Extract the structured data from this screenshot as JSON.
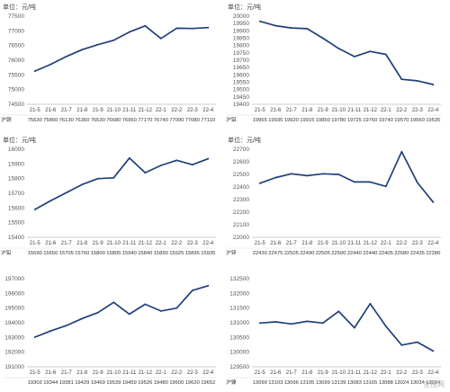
{
  "line_color": "#1f3f7a",
  "chart_data": [
    {
      "type": "line",
      "unit_label": "单位：元/吨",
      "row_label": "沪铜",
      "categories": [
        "21-5",
        "21-6",
        "21-7",
        "21-8",
        "21-9",
        "21-10",
        "21-11",
        "21-12",
        "22-1",
        "22-2",
        "22-3",
        "22-4"
      ],
      "values": [
        75630,
        75860,
        76130,
        76360,
        76530,
        76680,
        76960,
        77170,
        76740,
        77090,
        77080,
        77110
      ],
      "yticks": [
        74500,
        75000,
        75500,
        76000,
        76500,
        77000,
        77500
      ],
      "ylim": [
        74500,
        77500
      ]
    },
    {
      "type": "line",
      "unit_label": "单位：元/吨",
      "row_label": "沪铝",
      "categories": [
        "21-5",
        "21-6",
        "21-7",
        "21-8",
        "21-9",
        "21-10",
        "21-11",
        "21-12",
        "22-1",
        "22-2",
        "22-3",
        "22-4"
      ],
      "values": [
        19965,
        19935,
        19920,
        19915,
        19850,
        19780,
        19725,
        19760,
        19740,
        19570,
        19560,
        19535
      ],
      "yticks": [
        19400,
        19450,
        19500,
        19550,
        19600,
        19650,
        19700,
        19750,
        19800,
        19850,
        19900,
        19950,
        20000
      ],
      "ylim": [
        19400,
        20000
      ]
    },
    {
      "type": "line",
      "unit_label": "单位：元/吨",
      "row_label": "沪铅",
      "categories": [
        "21-5",
        "21-6",
        "21-7",
        "21-8",
        "21-9",
        "21-10",
        "21-11",
        "21-12",
        "22-1",
        "22-2",
        "22-3",
        "22-4"
      ],
      "values": [
        15590,
        15650,
        15705,
        15760,
        15800,
        15805,
        15940,
        15840,
        15890,
        15925,
        15895,
        15935
      ],
      "yticks": [
        15400,
        15500,
        15600,
        15700,
        15800,
        15900,
        16000
      ],
      "ylim": [
        15400,
        16000
      ]
    },
    {
      "type": "line",
      "unit_label": "单位：元/吨",
      "row_label": "沪锌",
      "categories": [
        "21-5",
        "21-6",
        "21-7",
        "21-8",
        "21-9",
        "21-10",
        "21-11",
        "21-12",
        "22-1",
        "22-2",
        "22-3",
        "22-4"
      ],
      "values": [
        22430,
        22475,
        22505,
        22490,
        22505,
        22500,
        22440,
        22440,
        22405,
        22680,
        22435,
        22280
      ],
      "yticks": [
        22000,
        22100,
        22200,
        22300,
        22400,
        22500,
        22600,
        22700
      ],
      "ylim": [
        22000,
        22700
      ]
    },
    {
      "type": "line",
      "unit_label": "",
      "row_label": "",
      "categories": [
        "21-5",
        "21-6",
        "21-7",
        "21-8",
        "21-9",
        "21-10",
        "21-11",
        "21-12",
        "22-1",
        "22-2",
        "22-3",
        "22-4"
      ],
      "values": [
        19302,
        19344,
        19381,
        19429,
        19469,
        19539,
        19459,
        19526,
        19480,
        19500,
        19620,
        19652
      ],
      "value_labels": [
        "19302",
        "19344",
        "19381",
        "19429",
        "19469",
        "19539",
        "19459",
        "19526",
        "19480",
        "19500",
        "19620",
        "19652"
      ],
      "yticks": [
        191000,
        192000,
        193000,
        194000,
        195000,
        196000,
        197000
      ],
      "ylim": [
        191000,
        197000
      ],
      "y_scale": 10
    },
    {
      "type": "line",
      "unit_label": "",
      "row_label": "沪镍",
      "categories": [
        "21-5",
        "21-6",
        "21-7",
        "21-8",
        "21-9",
        "21-10",
        "21-11",
        "21-12",
        "22-1",
        "22-2",
        "22-3",
        "22-4"
      ],
      "values": [
        13099,
        13103,
        13096,
        13105,
        13099,
        13139,
        13083,
        13165,
        13088,
        13024,
        13034,
        13004
      ],
      "value_labels": [
        "13099",
        "13103",
        "13096",
        "13105",
        "13099",
        "13139",
        "13083",
        "13165",
        "13088",
        "13024",
        "13034",
        "13004"
      ],
      "yticks": [
        129500,
        130000,
        130500,
        131000,
        131500,
        132000,
        132500
      ],
      "ylim": [
        129500,
        132500
      ],
      "y_scale": 10
    }
  ],
  "watermark": "金投网"
}
